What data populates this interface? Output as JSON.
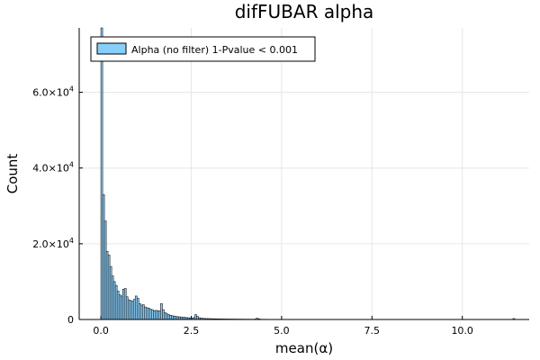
{
  "chart_data": {
    "type": "bar",
    "title": "difFUBAR alpha",
    "xlabel": "mean(α)",
    "ylabel": "Count",
    "xlim": [
      -0.6,
      11.85
    ],
    "ylim": [
      0,
      77000
    ],
    "grid": true,
    "legend_position": "top-left",
    "bar_color": "#87CEFA",
    "bar_edge_color": "#1a1a1a",
    "series": [
      {
        "name": "Alpha (no filter) 1-Pvalue < 0.001"
      }
    ],
    "x_ticks": [
      {
        "value": 0.0,
        "label": "0.0"
      },
      {
        "value": 2.5,
        "label": "2.5"
      },
      {
        "value": 5.0,
        "label": "5.0"
      },
      {
        "value": 7.5,
        "label": "7.5"
      },
      {
        "value": 10.0,
        "label": "10.0"
      }
    ],
    "y_ticks": [
      {
        "value": 0,
        "mantissa": "0",
        "exponent": ""
      },
      {
        "value": 20000,
        "mantissa": "2.0×10",
        "exponent": "4"
      },
      {
        "value": 40000,
        "mantissa": "4.0×10",
        "exponent": "4"
      },
      {
        "value": 60000,
        "mantissa": "6.0×10",
        "exponent": "4"
      }
    ],
    "bin_width": 0.05,
    "bins": [
      [
        0.0,
        77000
      ],
      [
        0.05,
        33000
      ],
      [
        0.1,
        26000
      ],
      [
        0.15,
        18000
      ],
      [
        0.2,
        17000
      ],
      [
        0.25,
        14000
      ],
      [
        0.3,
        11500
      ],
      [
        0.35,
        10000
      ],
      [
        0.4,
        9000
      ],
      [
        0.45,
        7500
      ],
      [
        0.5,
        6500
      ],
      [
        0.55,
        6200
      ],
      [
        0.6,
        8000
      ],
      [
        0.65,
        8200
      ],
      [
        0.7,
        6000
      ],
      [
        0.75,
        5200
      ],
      [
        0.8,
        5000
      ],
      [
        0.85,
        4800
      ],
      [
        0.9,
        5300
      ],
      [
        0.95,
        6200
      ],
      [
        1.0,
        5600
      ],
      [
        1.05,
        4200
      ],
      [
        1.1,
        3800
      ],
      [
        1.15,
        3900
      ],
      [
        1.2,
        3300
      ],
      [
        1.25,
        3100
      ],
      [
        1.3,
        3000
      ],
      [
        1.35,
        2700
      ],
      [
        1.4,
        2600
      ],
      [
        1.45,
        2300
      ],
      [
        1.5,
        2400
      ],
      [
        1.55,
        2300
      ],
      [
        1.6,
        2300
      ],
      [
        1.65,
        4200
      ],
      [
        1.7,
        2600
      ],
      [
        1.75,
        1800
      ],
      [
        1.8,
        1500
      ],
      [
        1.85,
        1300
      ],
      [
        1.9,
        1100
      ],
      [
        1.95,
        1000
      ],
      [
        2.0,
        900
      ],
      [
        2.05,
        800
      ],
      [
        2.1,
        750
      ],
      [
        2.15,
        700
      ],
      [
        2.2,
        650
      ],
      [
        2.25,
        600
      ],
      [
        2.3,
        550
      ],
      [
        2.35,
        500
      ],
      [
        2.4,
        460
      ],
      [
        2.45,
        420
      ],
      [
        2.5,
        400
      ],
      [
        2.55,
        500
      ],
      [
        2.6,
        1300
      ],
      [
        2.65,
        800
      ],
      [
        2.7,
        450
      ],
      [
        2.75,
        350
      ],
      [
        2.8,
        300
      ],
      [
        2.85,
        270
      ],
      [
        2.9,
        250
      ],
      [
        2.95,
        230
      ],
      [
        3.0,
        220
      ],
      [
        3.05,
        200
      ],
      [
        3.1,
        190
      ],
      [
        3.15,
        180
      ],
      [
        3.2,
        170
      ],
      [
        3.25,
        160
      ],
      [
        3.3,
        150
      ],
      [
        3.35,
        140
      ],
      [
        3.4,
        135
      ],
      [
        3.45,
        130
      ],
      [
        3.5,
        125
      ],
      [
        3.55,
        120
      ],
      [
        3.6,
        115
      ],
      [
        3.65,
        110
      ],
      [
        3.7,
        105
      ],
      [
        3.75,
        100
      ],
      [
        3.8,
        95
      ],
      [
        3.85,
        90
      ],
      [
        3.9,
        88
      ],
      [
        3.95,
        85
      ],
      [
        4.0,
        80
      ],
      [
        4.05,
        78
      ],
      [
        4.1,
        75
      ],
      [
        4.15,
        72
      ],
      [
        4.2,
        70
      ],
      [
        4.25,
        120
      ],
      [
        4.3,
        350
      ],
      [
        4.35,
        150
      ],
      [
        4.4,
        65
      ],
      [
        4.45,
        60
      ],
      [
        4.5,
        55
      ],
      [
        4.55,
        52
      ],
      [
        4.6,
        50
      ],
      [
        4.65,
        48
      ],
      [
        4.7,
        45
      ],
      [
        4.75,
        42
      ],
      [
        4.8,
        40
      ],
      [
        4.85,
        38
      ],
      [
        4.9,
        36
      ],
      [
        4.95,
        34
      ],
      [
        5.0,
        32
      ],
      [
        5.1,
        30
      ],
      [
        5.2,
        28
      ],
      [
        5.3,
        26
      ],
      [
        5.4,
        24
      ],
      [
        5.5,
        22
      ],
      [
        5.6,
        20
      ],
      [
        5.7,
        18
      ],
      [
        5.8,
        16
      ],
      [
        5.9,
        15
      ],
      [
        6.0,
        14
      ],
      [
        6.2,
        12
      ],
      [
        6.4,
        11
      ],
      [
        6.6,
        10
      ],
      [
        6.8,
        9
      ],
      [
        7.0,
        8
      ],
      [
        7.5,
        6
      ],
      [
        8.0,
        5
      ],
      [
        8.5,
        4
      ],
      [
        9.0,
        3
      ],
      [
        9.5,
        3
      ],
      [
        10.0,
        2
      ],
      [
        10.5,
        2
      ],
      [
        11.0,
        2
      ],
      [
        11.4,
        250
      ]
    ]
  }
}
